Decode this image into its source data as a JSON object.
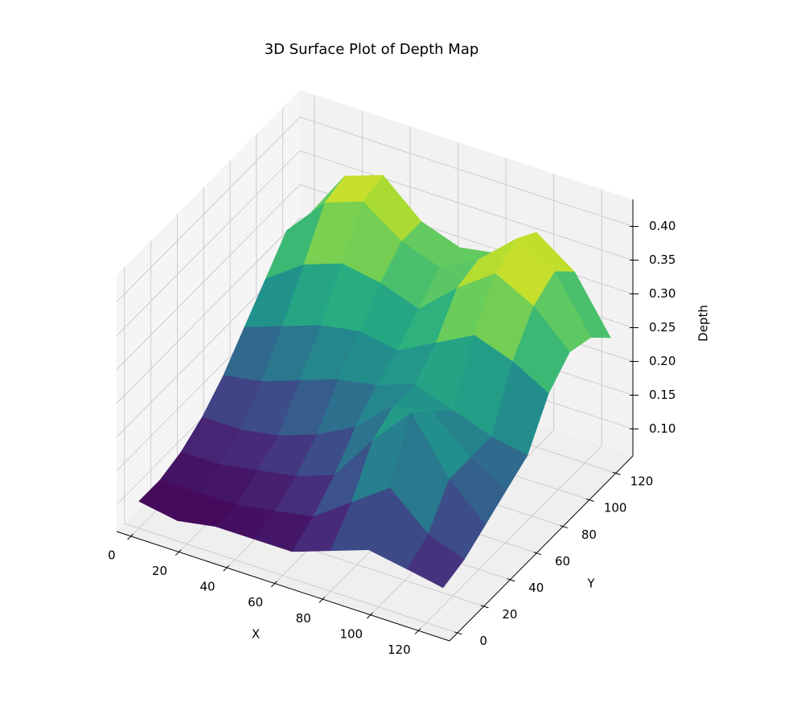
{
  "chart_data": {
    "type": "surface3d",
    "title": "3D Surface Plot of Depth Map",
    "xlabel": "X",
    "ylabel": "Y",
    "zlabel": "Depth",
    "colormap": "viridis",
    "x": [
      0,
      16,
      32,
      48,
      64,
      80,
      96,
      112,
      127
    ],
    "y": [
      0,
      16,
      32,
      48,
      64,
      80,
      96,
      112,
      127
    ],
    "z": [
      [
        0.1,
        0.09,
        0.1,
        0.1,
        0.1,
        0.12,
        0.14,
        0.13,
        0.12
      ],
      [
        0.1,
        0.1,
        0.1,
        0.11,
        0.12,
        0.16,
        0.2,
        0.15,
        0.13
      ],
      [
        0.11,
        0.11,
        0.12,
        0.13,
        0.15,
        0.22,
        0.28,
        0.2,
        0.15
      ],
      [
        0.13,
        0.13,
        0.14,
        0.16,
        0.19,
        0.24,
        0.25,
        0.2,
        0.17
      ],
      [
        0.16,
        0.17,
        0.19,
        0.21,
        0.22,
        0.24,
        0.22,
        0.2,
        0.19
      ],
      [
        0.2,
        0.22,
        0.24,
        0.25,
        0.24,
        0.27,
        0.3,
        0.28,
        0.25
      ],
      [
        0.24,
        0.28,
        0.3,
        0.29,
        0.27,
        0.32,
        0.36,
        0.33,
        0.28
      ],
      [
        0.28,
        0.34,
        0.36,
        0.32,
        0.3,
        0.33,
        0.38,
        0.35,
        0.27
      ],
      [
        0.27,
        0.35,
        0.37,
        0.32,
        0.3,
        0.31,
        0.36,
        0.32,
        0.24
      ]
    ],
    "xlim": [
      -6,
      133
    ],
    "ylim": [
      -6,
      133
    ],
    "zlim": [
      0.06,
      0.44
    ],
    "xticks": [
      0,
      20,
      40,
      60,
      80,
      100,
      120
    ],
    "yticks": [
      0,
      20,
      40,
      60,
      80,
      100,
      120
    ],
    "zticks": [
      {
        "value": 0.1,
        "label": "0.10"
      },
      0.15,
      {
        "value": 0.2,
        "label": "0.20"
      },
      0.25,
      {
        "value": 0.3,
        "label": "0.30"
      },
      0.35,
      {
        "value": 0.4,
        "label": "0.40"
      }
    ],
    "grid": true
  }
}
